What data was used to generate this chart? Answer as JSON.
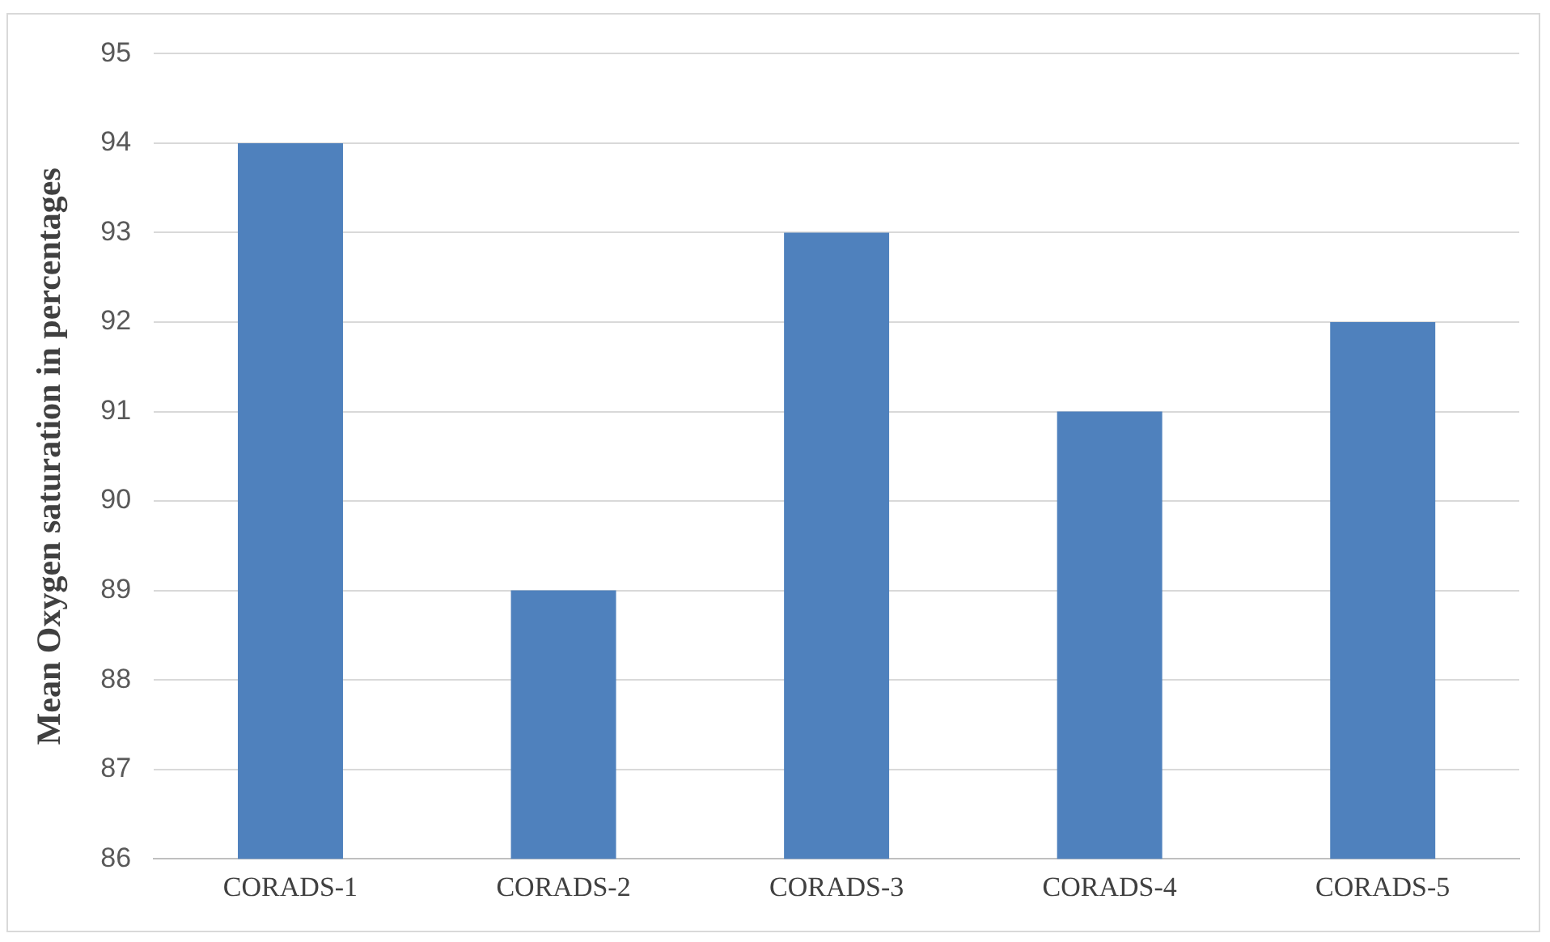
{
  "chart_data": {
    "type": "bar",
    "ylabel": "Mean Oxygen saturation in percentages",
    "categories": [
      "CORADS-1",
      "CORADS-2",
      "CORADS-3",
      "CORADS-4",
      "CORADS-5"
    ],
    "values": [
      94,
      89,
      93,
      91,
      92
    ],
    "color": "#4f81bd",
    "ylim": [
      86,
      95
    ],
    "yticks": [
      86,
      87,
      88,
      89,
      90,
      91,
      92,
      93,
      94,
      95
    ],
    "grid": "y",
    "legend": false
  }
}
